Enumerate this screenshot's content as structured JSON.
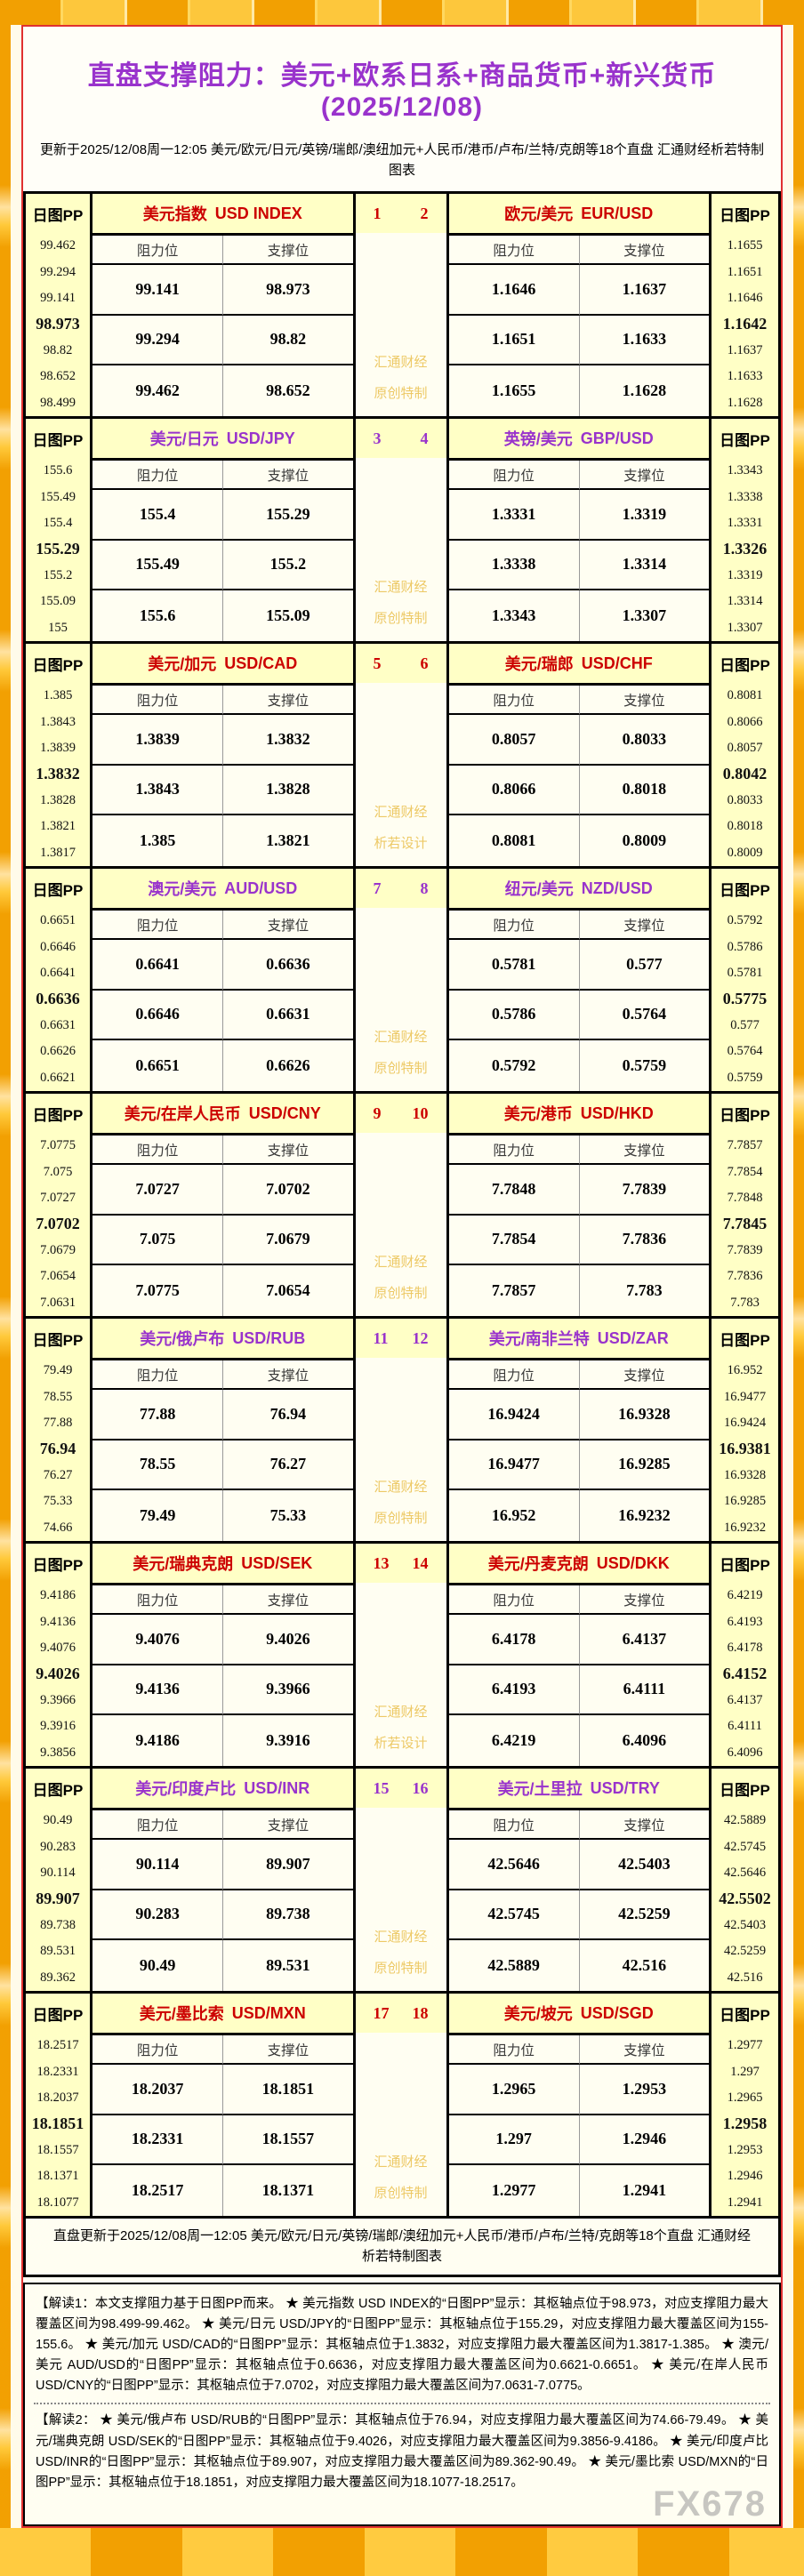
{
  "page": {
    "title": "直盘支撑阻力：美元+欧系日系+商品货币+新兴货币(2025/12/08)",
    "subtitle": "更新于2025/12/08周一12:05 美元/欧元/日元/英镑/瑞郎/澳纽加元+人民币/港币/卢布/兰特/克朗等18个直盘 汇通财经析若特制图表",
    "labels": {
      "pp": "日图PP",
      "resistance": "阻力位",
      "support": "支撑位"
    },
    "footer_update_line": "直盘更新于2025/12/08周一12:05 美元/欧元/日元/英镑/瑞郎/澳纽加元+人民币/港币/卢布/兰特/克朗等18个直盘 汇通财经析若特制图表",
    "note1": "【解读1：本文支撑阻力基于日图PP而来。 ★ 美元指数 USD INDEX的“日图PP”显示：其枢轴点位于98.973，对应支撑阻力最大覆盖区间为98.499-99.462。 ★ 美元/日元 USD/JPY的“日图PP”显示：其枢轴点位于155.29，对应支撑阻力最大覆盖区间为155-155.6。 ★ 美元/加元 USD/CAD的“日图PP”显示：其枢轴点位于1.3832，对应支撑阻力最大覆盖区间为1.3817-1.385。 ★ 澳元/美元 AUD/USD的“日图PP”显示：其枢轴点位于0.6636，对应支撑阻力最大覆盖区间为0.6621-0.6651。 ★ 美元/在岸人民币 USD/CNY的“日图PP”显示：其枢轴点位于7.0702，对应支撑阻力最大覆盖区间为7.0631-7.0775。",
    "note2": "【解读2： ★ 美元/俄卢布 USD/RUB的“日图PP”显示：其枢轴点位于76.94，对应支撑阻力最大覆盖区间为74.66-79.49。 ★ 美元/瑞典克朗 USD/SEK的“日图PP”显示：其枢轴点位于9.4026，对应支撑阻力最大覆盖区间为9.3856-9.4186。 ★ 美元/印度卢比 USD/INR的“日图PP”显示：其枢轴点位于89.907，对应支撑阻力最大覆盖区间为89.362-90.49。 ★ 美元/墨比索 USD/MXN的“日图PP”显示：其枢轴点位于18.1851，对应支撑阻力最大覆盖区间为18.1077-18.2517。",
    "brand_watermark": "FX678",
    "colors": {
      "accent_red": "#CC0000",
      "accent_purple": "#9933CC",
      "title_purple": "#9933CC",
      "header_bg": "#FFFFC6",
      "cell_bg": "#FFFEF2",
      "frame_gold": "#F2A002",
      "watermark_gold": "#EDC966",
      "red_border": "#E03030"
    }
  },
  "blocks": [
    {
      "num_left": "1",
      "num_right": "2",
      "accent": "red",
      "watermark": [
        "汇通财经",
        "原创特制"
      ],
      "left": {
        "name_cn": "美元指数",
        "name_en": "USD INDEX",
        "pp": [
          "99.462",
          "99.294",
          "99.141",
          "98.973",
          "98.82",
          "98.652",
          "98.499"
        ],
        "rows": [
          [
            "99.141",
            "98.973"
          ],
          [
            "99.294",
            "98.82"
          ],
          [
            "99.462",
            "98.652"
          ]
        ]
      },
      "right": {
        "name_cn": "欧元/美元",
        "name_en": "EUR/USD",
        "pp": [
          "1.1655",
          "1.1651",
          "1.1646",
          "1.1642",
          "1.1637",
          "1.1633",
          "1.1628"
        ],
        "rows": [
          [
            "1.1646",
            "1.1637"
          ],
          [
            "1.1651",
            "1.1633"
          ],
          [
            "1.1655",
            "1.1628"
          ]
        ]
      }
    },
    {
      "num_left": "3",
      "num_right": "4",
      "accent": "purple",
      "watermark": [
        "汇通财经",
        "原创特制"
      ],
      "left": {
        "name_cn": "美元/日元",
        "name_en": "USD/JPY",
        "pp": [
          "155.6",
          "155.49",
          "155.4",
          "155.29",
          "155.2",
          "155.09",
          "155"
        ],
        "rows": [
          [
            "155.4",
            "155.29"
          ],
          [
            "155.49",
            "155.2"
          ],
          [
            "155.6",
            "155.09"
          ]
        ]
      },
      "right": {
        "name_cn": "英镑/美元",
        "name_en": "GBP/USD",
        "pp": [
          "1.3343",
          "1.3338",
          "1.3331",
          "1.3326",
          "1.3319",
          "1.3314",
          "1.3307"
        ],
        "rows": [
          [
            "1.3331",
            "1.3319"
          ],
          [
            "1.3338",
            "1.3314"
          ],
          [
            "1.3343",
            "1.3307"
          ]
        ]
      }
    },
    {
      "num_left": "5",
      "num_right": "6",
      "accent": "red",
      "watermark": [
        "汇通财经",
        "析若设计"
      ],
      "left": {
        "name_cn": "美元/加元",
        "name_en": "USD/CAD",
        "pp": [
          "1.385",
          "1.3843",
          "1.3839",
          "1.3832",
          "1.3828",
          "1.3821",
          "1.3817"
        ],
        "rows": [
          [
            "1.3839",
            "1.3832"
          ],
          [
            "1.3843",
            "1.3828"
          ],
          [
            "1.385",
            "1.3821"
          ]
        ]
      },
      "right": {
        "name_cn": "美元/瑞郎",
        "name_en": "USD/CHF",
        "pp": [
          "0.8081",
          "0.8066",
          "0.8057",
          "0.8042",
          "0.8033",
          "0.8018",
          "0.8009"
        ],
        "rows": [
          [
            "0.8057",
            "0.8033"
          ],
          [
            "0.8066",
            "0.8018"
          ],
          [
            "0.8081",
            "0.8009"
          ]
        ]
      }
    },
    {
      "num_left": "7",
      "num_right": "8",
      "accent": "purple",
      "watermark": [
        "汇通财经",
        "原创特制"
      ],
      "left": {
        "name_cn": "澳元/美元",
        "name_en": "AUD/USD",
        "pp": [
          "0.6651",
          "0.6646",
          "0.6641",
          "0.6636",
          "0.6631",
          "0.6626",
          "0.6621"
        ],
        "rows": [
          [
            "0.6641",
            "0.6636"
          ],
          [
            "0.6646",
            "0.6631"
          ],
          [
            "0.6651",
            "0.6626"
          ]
        ]
      },
      "right": {
        "name_cn": "纽元/美元",
        "name_en": "NZD/USD",
        "pp": [
          "0.5792",
          "0.5786",
          "0.5781",
          "0.5775",
          "0.577",
          "0.5764",
          "0.5759"
        ],
        "rows": [
          [
            "0.5781",
            "0.577"
          ],
          [
            "0.5786",
            "0.5764"
          ],
          [
            "0.5792",
            "0.5759"
          ]
        ]
      }
    },
    {
      "num_left": "9",
      "num_right": "10",
      "accent": "red",
      "watermark": [
        "汇通财经",
        "原创特制"
      ],
      "left": {
        "name_cn": "美元/在岸人民币",
        "name_en": "USD/CNY",
        "pp": [
          "7.0775",
          "7.075",
          "7.0727",
          "7.0702",
          "7.0679",
          "7.0654",
          "7.0631"
        ],
        "rows": [
          [
            "7.0727",
            "7.0702"
          ],
          [
            "7.075",
            "7.0679"
          ],
          [
            "7.0775",
            "7.0654"
          ]
        ]
      },
      "right": {
        "name_cn": "美元/港币",
        "name_en": "USD/HKD",
        "pp": [
          "7.7857",
          "7.7854",
          "7.7848",
          "7.7845",
          "7.7839",
          "7.7836",
          "7.783"
        ],
        "rows": [
          [
            "7.7848",
            "7.7839"
          ],
          [
            "7.7854",
            "7.7836"
          ],
          [
            "7.7857",
            "7.783"
          ]
        ]
      }
    },
    {
      "num_left": "11",
      "num_right": "12",
      "accent": "purple",
      "watermark": [
        "汇通财经",
        "原创特制"
      ],
      "left": {
        "name_cn": "美元/俄卢布",
        "name_en": "USD/RUB",
        "pp": [
          "79.49",
          "78.55",
          "77.88",
          "76.94",
          "76.27",
          "75.33",
          "74.66"
        ],
        "rows": [
          [
            "77.88",
            "76.94"
          ],
          [
            "78.55",
            "76.27"
          ],
          [
            "79.49",
            "75.33"
          ]
        ]
      },
      "right": {
        "name_cn": "美元/南非兰特",
        "name_en": "USD/ZAR",
        "pp": [
          "16.952",
          "16.9477",
          "16.9424",
          "16.9381",
          "16.9328",
          "16.9285",
          "16.9232"
        ],
        "rows": [
          [
            "16.9424",
            "16.9328"
          ],
          [
            "16.9477",
            "16.9285"
          ],
          [
            "16.952",
            "16.9232"
          ]
        ]
      }
    },
    {
      "num_left": "13",
      "num_right": "14",
      "accent": "red",
      "watermark": [
        "汇通财经",
        "析若设计"
      ],
      "left": {
        "name_cn": "美元/瑞典克朗",
        "name_en": "USD/SEK",
        "pp": [
          "9.4186",
          "9.4136",
          "9.4076",
          "9.4026",
          "9.3966",
          "9.3916",
          "9.3856"
        ],
        "rows": [
          [
            "9.4076",
            "9.4026"
          ],
          [
            "9.4136",
            "9.3966"
          ],
          [
            "9.4186",
            "9.3916"
          ]
        ]
      },
      "right": {
        "name_cn": "美元/丹麦克朗",
        "name_en": "USD/DKK",
        "pp": [
          "6.4219",
          "6.4193",
          "6.4178",
          "6.4152",
          "6.4137",
          "6.4111",
          "6.4096"
        ],
        "rows": [
          [
            "6.4178",
            "6.4137"
          ],
          [
            "6.4193",
            "6.4111"
          ],
          [
            "6.4219",
            "6.4096"
          ]
        ]
      }
    },
    {
      "num_left": "15",
      "num_right": "16",
      "accent": "purple",
      "watermark": [
        "汇通财经",
        "原创特制"
      ],
      "left": {
        "name_cn": "美元/印度卢比",
        "name_en": "USD/INR",
        "pp": [
          "90.49",
          "90.283",
          "90.114",
          "89.907",
          "89.738",
          "89.531",
          "89.362"
        ],
        "rows": [
          [
            "90.114",
            "89.907"
          ],
          [
            "90.283",
            "89.738"
          ],
          [
            "90.49",
            "89.531"
          ]
        ]
      },
      "right": {
        "name_cn": "美元/土里拉",
        "name_en": "USD/TRY",
        "pp": [
          "42.5889",
          "42.5745",
          "42.5646",
          "42.5502",
          "42.5403",
          "42.5259",
          "42.516"
        ],
        "rows": [
          [
            "42.5646",
            "42.5403"
          ],
          [
            "42.5745",
            "42.5259"
          ],
          [
            "42.5889",
            "42.516"
          ]
        ]
      }
    },
    {
      "num_left": "17",
      "num_right": "18",
      "accent": "red",
      "watermark": [
        "汇通财经",
        "原创特制"
      ],
      "left": {
        "name_cn": "美元/墨比索",
        "name_en": "USD/MXN",
        "pp": [
          "18.2517",
          "18.2331",
          "18.2037",
          "18.1851",
          "18.1557",
          "18.1371",
          "18.1077"
        ],
        "rows": [
          [
            "18.2037",
            "18.1851"
          ],
          [
            "18.2331",
            "18.1557"
          ],
          [
            "18.2517",
            "18.1371"
          ]
        ]
      },
      "right": {
        "name_cn": "美元/坡元",
        "name_en": "USD/SGD",
        "pp": [
          "1.2977",
          "1.297",
          "1.2965",
          "1.2958",
          "1.2953",
          "1.2946",
          "1.2941"
        ],
        "rows": [
          [
            "1.2965",
            "1.2953"
          ],
          [
            "1.297",
            "1.2946"
          ],
          [
            "1.2977",
            "1.2941"
          ]
        ]
      }
    }
  ]
}
